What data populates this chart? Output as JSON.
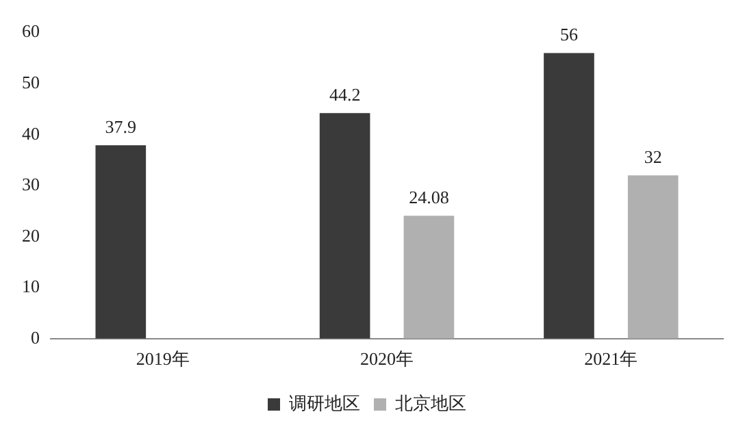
{
  "chart_data": {
    "type": "bar",
    "categories": [
      "2019年",
      "2020年",
      "2021年"
    ],
    "series": [
      {
        "name": "调研地区",
        "color": "#3a3a3a",
        "values": [
          37.9,
          44.2,
          56
        ]
      },
      {
        "name": "北京地区",
        "color": "#b0b0b0",
        "values": [
          null,
          24.08,
          32
        ]
      }
    ],
    "ylim": [
      0,
      60
    ],
    "yticks": [
      0,
      10,
      20,
      30,
      40,
      50,
      60
    ],
    "grid": false,
    "legend": "bottom",
    "data_labels": true
  }
}
